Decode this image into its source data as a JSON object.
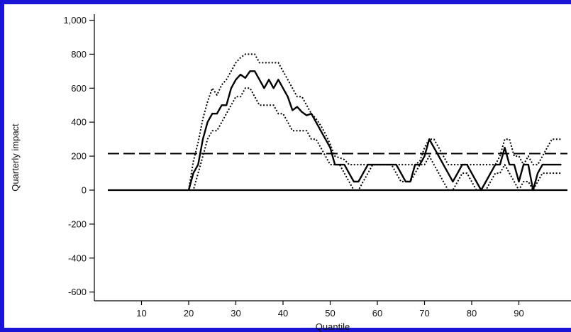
{
  "colors": {
    "frame": "#1a14d6",
    "ink": "#000000"
  },
  "chart_data": {
    "type": "line",
    "title": "",
    "xlabel": "Quantile",
    "ylabel": "Quarterly impact",
    "xlim": [
      0,
      100
    ],
    "ylim": [
      -650,
      1050
    ],
    "x_ticks": [
      10,
      20,
      30,
      40,
      50,
      60,
      70,
      80,
      90
    ],
    "x_tick_labels": [
      "10",
      "20",
      "30",
      "40",
      "50",
      "60",
      "70",
      "80",
      "90"
    ],
    "y_ticks": [
      -600,
      -400,
      -200,
      0,
      200,
      400,
      600,
      800,
      1000
    ],
    "y_tick_labels": [
      "-600",
      "-400",
      "-200",
      "0",
      "200",
      "400",
      "600",
      "800",
      "1,000"
    ],
    "grid": false,
    "series": [
      {
        "style": "solid",
        "x": [
          20,
          21,
          22,
          23,
          24,
          25,
          26,
          27,
          28,
          29,
          30,
          31,
          32,
          33,
          34,
          35,
          36,
          37,
          38,
          39,
          40,
          41,
          42,
          43,
          44,
          45,
          46,
          47,
          48,
          49,
          50,
          51,
          52,
          53,
          54,
          55,
          56,
          57,
          58,
          59,
          60,
          61,
          62,
          63,
          64,
          65,
          66,
          67,
          68,
          69,
          70,
          71,
          72,
          73,
          74,
          75,
          76,
          77,
          78,
          79,
          80,
          81,
          82,
          83,
          84,
          85,
          86,
          87,
          88,
          89,
          90,
          91,
          92,
          93,
          94,
          95,
          96,
          97,
          98,
          99
        ],
        "values": [
          0,
          100,
          150,
          300,
          400,
          450,
          450,
          500,
          500,
          600,
          650,
          680,
          660,
          700,
          700,
          650,
          600,
          650,
          600,
          650,
          600,
          550,
          470,
          490,
          460,
          440,
          450,
          400,
          350,
          300,
          250,
          150,
          150,
          150,
          100,
          50,
          50,
          100,
          150,
          150,
          150,
          150,
          150,
          150,
          150,
          100,
          50,
          50,
          150,
          150,
          200,
          300,
          250,
          200,
          150,
          100,
          50,
          100,
          150,
          150,
          100,
          50,
          0,
          50,
          100,
          150,
          150,
          250,
          150,
          150,
          50,
          150,
          150,
          0,
          100,
          150,
          150,
          150,
          150,
          150
        ]
      },
      {
        "style": "dotted",
        "x": [
          20,
          21,
          22,
          23,
          24,
          25,
          26,
          27,
          28,
          29,
          30,
          31,
          32,
          33,
          34,
          35,
          36,
          37,
          38,
          39,
          40,
          41,
          42,
          43,
          44,
          45,
          46,
          47,
          48,
          49,
          50,
          51,
          52,
          53,
          54,
          55,
          56,
          57,
          58,
          59,
          60,
          61,
          62,
          63,
          64,
          65,
          66,
          67,
          68,
          69,
          70,
          71,
          72,
          73,
          74,
          75,
          76,
          77,
          78,
          79,
          80,
          81,
          82,
          83,
          84,
          85,
          86,
          87,
          88,
          89,
          90,
          91,
          92,
          93,
          94,
          95,
          96,
          97,
          98,
          99
        ],
        "values": [
          0,
          170,
          280,
          420,
          520,
          600,
          560,
          620,
          650,
          700,
          750,
          780,
          800,
          800,
          800,
          750,
          750,
          750,
          750,
          750,
          700,
          650,
          600,
          550,
          550,
          500,
          450,
          420,
          380,
          330,
          270,
          200,
          190,
          180,
          150,
          150,
          150,
          150,
          150,
          150,
          150,
          150,
          150,
          150,
          150,
          150,
          150,
          150,
          150,
          170,
          250,
          300,
          300,
          250,
          200,
          150,
          150,
          150,
          150,
          150,
          150,
          150,
          150,
          150,
          150,
          150,
          200,
          300,
          300,
          200,
          200,
          150,
          200,
          150,
          150,
          200,
          250,
          300,
          300,
          300
        ]
      },
      {
        "style": "dotted",
        "x": [
          20,
          21,
          22,
          23,
          24,
          25,
          26,
          27,
          28,
          29,
          30,
          31,
          32,
          33,
          34,
          35,
          36,
          37,
          38,
          39,
          40,
          41,
          42,
          43,
          44,
          45,
          46,
          47,
          48,
          49,
          50,
          51,
          52,
          53,
          54,
          55,
          56,
          57,
          58,
          59,
          60,
          61,
          62,
          63,
          64,
          65,
          66,
          67,
          68,
          69,
          70,
          71,
          72,
          73,
          74,
          75,
          76,
          77,
          78,
          79,
          80,
          81,
          82,
          83,
          84,
          85,
          86,
          87,
          88,
          89,
          90,
          91,
          92,
          93,
          94,
          95,
          96,
          97,
          98,
          99
        ],
        "values": [
          0,
          0,
          100,
          200,
          300,
          350,
          350,
          400,
          450,
          500,
          550,
          550,
          600,
          600,
          550,
          500,
          500,
          500,
          500,
          450,
          450,
          400,
          350,
          350,
          350,
          350,
          300,
          300,
          250,
          200,
          150,
          150,
          150,
          100,
          50,
          0,
          0,
          50,
          100,
          150,
          150,
          150,
          150,
          150,
          100,
          50,
          50,
          50,
          100,
          150,
          150,
          200,
          150,
          100,
          50,
          0,
          0,
          50,
          100,
          100,
          50,
          0,
          0,
          0,
          50,
          100,
          100,
          150,
          100,
          50,
          0,
          50,
          50,
          0,
          50,
          100,
          100,
          100,
          100,
          100
        ]
      }
    ],
    "reference_lines": [
      {
        "style": "solid",
        "y": 0
      },
      {
        "style": "dashed",
        "y": 215
      }
    ]
  }
}
